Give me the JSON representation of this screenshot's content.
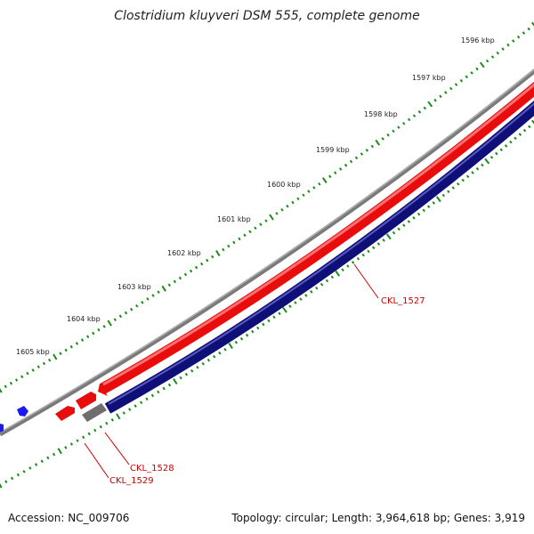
{
  "title": "Clostridium kluyveri DSM 555, complete genome",
  "accession": "Accession: NC_009706",
  "summary": "Topology: circular; Length: 3,964,618 bp; Genes: 3,919",
  "ruler": {
    "ticks": [
      {
        "label": "1596 kbp"
      },
      {
        "label": "1597 kbp"
      },
      {
        "label": "1598 kbp"
      },
      {
        "label": "1599 kbp"
      },
      {
        "label": "1600 kbp"
      },
      {
        "label": "1601 kbp"
      },
      {
        "label": "1602 kbp"
      },
      {
        "label": "1603 kbp"
      },
      {
        "label": "1604 kbp"
      },
      {
        "label": "1605 kbp"
      }
    ]
  },
  "genes": [
    {
      "name": "CKL_1527",
      "color": "#e01010"
    },
    {
      "name": "CKL_1528",
      "color": "#e01010"
    },
    {
      "name": "CKL_1529",
      "color": "#e01010"
    }
  ],
  "colors": {
    "forward_feature": "#ff1a1a",
    "reverse_feature": "#13137a",
    "backbone": "#808080",
    "tick": "#1a8a1a",
    "label_red": "#cc0000",
    "small_feature": "#1a1aee",
    "grey_feature": "#707070"
  }
}
